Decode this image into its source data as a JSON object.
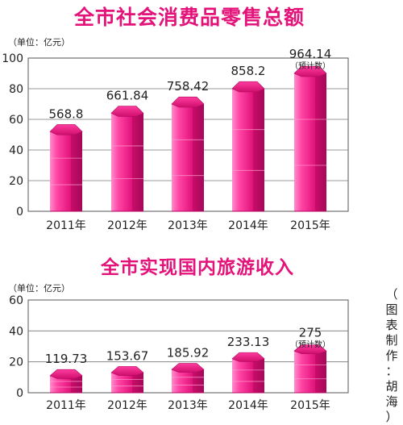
{
  "chart_data": [
    {
      "type": "bar",
      "title": "全市社会消费品零售总额",
      "unit_label": "（单位：亿元）",
      "categories": [
        "2011年",
        "2012年",
        "2013年",
        "2014年",
        "2015年"
      ],
      "values": [
        568.8,
        661.84,
        758.42,
        858.2,
        964.14
      ],
      "value_labels": [
        "568.8",
        "661.84",
        "758.42",
        "858.2",
        "964.14"
      ],
      "bar_heights_axis": [
        52,
        64,
        70,
        80,
        90
      ],
      "annotations": [
        {
          "category": "2015年",
          "text": "（预计数）"
        }
      ],
      "yticks": [
        "0",
        "20",
        "40",
        "60",
        "80",
        "100"
      ],
      "ylim": [
        0,
        100
      ],
      "grid": true,
      "color": "#e3137a"
    },
    {
      "type": "bar",
      "title": "全市实现国内旅游收入",
      "unit_label": "（单位：亿元）",
      "categories": [
        "2011年",
        "2012年",
        "2013年",
        "2014年",
        "2015年"
      ],
      "values": [
        119.73,
        153.67,
        185.92,
        233.13,
        275
      ],
      "value_labels": [
        "119.73",
        "153.67",
        "185.92",
        "233.13",
        "275"
      ],
      "bar_heights_axis": [
        11,
        13,
        15,
        22,
        27
      ],
      "annotations": [
        {
          "category": "2015年",
          "text": "（预计数）"
        }
      ],
      "yticks": [
        "0",
        "20",
        "40",
        "60"
      ],
      "ylim": [
        0,
        60
      ],
      "grid": true,
      "color": "#e3137a"
    }
  ],
  "credit_chars": [
    "（",
    "图",
    "表",
    "制",
    "作",
    "：",
    "胡",
    "海",
    "）"
  ]
}
